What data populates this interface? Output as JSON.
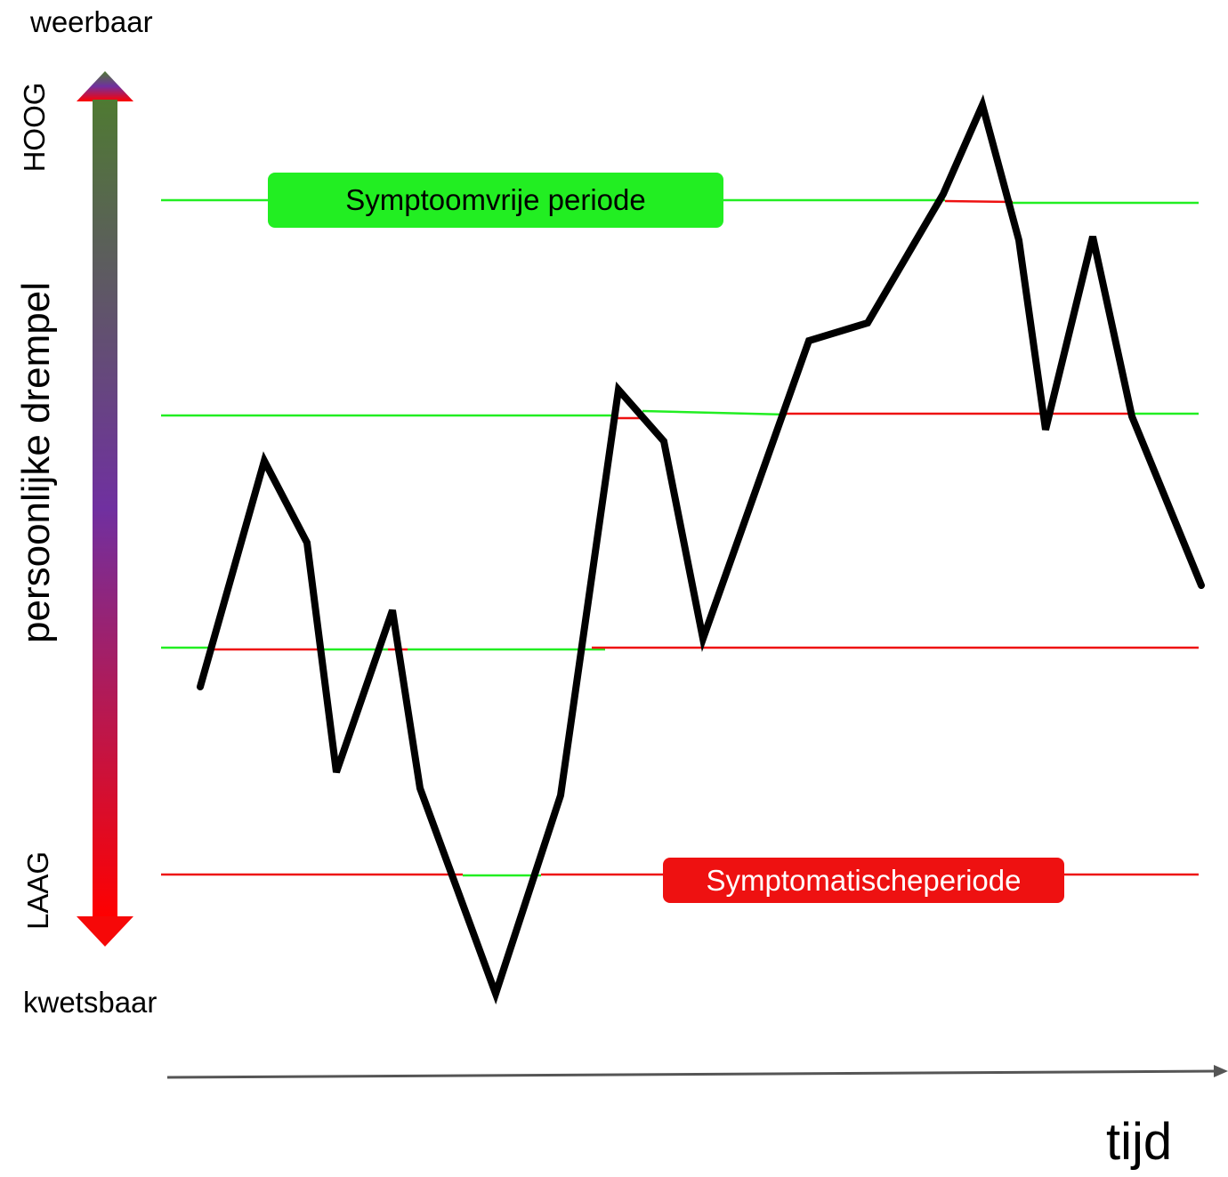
{
  "labels": {
    "top": "weerbaar",
    "bottom": "kwetsbaar",
    "high": "HOOG",
    "low": "LAAG",
    "axis_title": "persoonlijke drempel",
    "time": "tijd",
    "symptom_free": "Symptoomvrije periode",
    "symptomatic": "Symptomatischeperiode"
  },
  "colors": {
    "symptom_free": "#22ee22",
    "symptomatic": "#ee1111",
    "line": "#000000",
    "gradient_top": "#4f7a32",
    "gradient_mid": "#7030a0",
    "gradient_bottom": "#ff0000",
    "time_axis": "#555555"
  }
}
